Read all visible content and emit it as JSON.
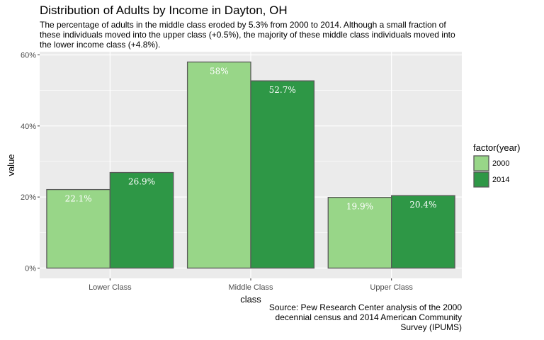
{
  "chart_data": {
    "type": "bar",
    "title": "Distribution of Adults by Income in Dayton, OH",
    "subtitle": "The percentage of adults in the middle class eroded by 5.3% from 2000 to 2014. Although a small fraction of these individuals moved into the upper class (+0.5%), the majority of these middle class individuals moved into the lower income class (+4.8%).",
    "caption": "Source: Pew Research Center analysis of the 2000 decennial census and 2014 American Community Survey (IPUMS)",
    "xlabel": "class",
    "ylabel": "value",
    "categories": [
      "Lower Class",
      "Middle Class",
      "Upper Class"
    ],
    "series": [
      {
        "name": "2000",
        "values": [
          22.1,
          58,
          19.9
        ],
        "labels": [
          "22.1%",
          "58%",
          "19.9%"
        ],
        "color": "#98d688"
      },
      {
        "name": "2014",
        "values": [
          26.9,
          52.7,
          20.4
        ],
        "labels": [
          "26.9%",
          "52.7%",
          "20.4%"
        ],
        "color": "#2e9746"
      }
    ],
    "yticks": [
      0,
      20,
      40,
      60
    ],
    "ytick_labels": [
      "0%",
      "20%",
      "40%",
      "60%"
    ],
    "ylim": [
      -2.9,
      60.9
    ],
    "grid": true,
    "legend": {
      "title": "factor(year)",
      "position": "right"
    },
    "colors": {
      "panel": "#ebebeb",
      "grid": "#ffffff",
      "bar_border": "#595959"
    }
  }
}
